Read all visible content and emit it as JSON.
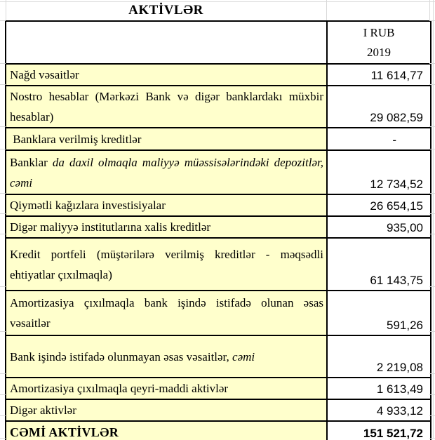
{
  "title": "AKTİVLƏR",
  "header": {
    "period_line1": "I RUB",
    "period_line2": "2019"
  },
  "colors": {
    "label_bg": "#FFFFCC",
    "border": "#000000",
    "gridline": "#D9D9D9",
    "text": "#000000"
  },
  "rows": [
    {
      "label": [
        {
          "text": "Nağd vəsaitlər",
          "italic": false
        }
      ],
      "value": "11 614,77",
      "total": false
    },
    {
      "label": [
        {
          "text": "Nostro hesablar (Mərkəzi Bank və digər banklardakı müxbir hesablar)",
          "italic": false
        }
      ],
      "value": "29 082,59",
      "total": false
    },
    {
      "label": [
        {
          "text": " Banklara verilmiş kreditlər",
          "italic": false
        }
      ],
      "value": "-",
      "total": false
    },
    {
      "label": [
        {
          "text": "Banklar ",
          "italic": false
        },
        {
          "text": "da daxil olmaqla maliyyə müəssisələrindəki depozitlər, cəmi",
          "italic": true
        }
      ],
      "value": "12 734,52",
      "total": false
    },
    {
      "label": [
        {
          "text": "Qiymətli kağızlara investisiyalar",
          "italic": false
        }
      ],
      "value": "26 654,15",
      "total": false
    },
    {
      "label": [
        {
          "text": "Digər maliyyə institutlarına xalis kreditlər",
          "italic": false
        }
      ],
      "value": "935,00",
      "total": false
    },
    {
      "label": [
        {
          "text": "Kredit portfeli (müştərilərə verilmiş kreditlər - məqsədli ehtiyatlar çıxılmaqla)",
          "italic": false
        }
      ],
      "value": "61 143,75",
      "total": false
    },
    {
      "label": [
        {
          "text": "Amortizasiya çıxılmaqla bank işində istifadə olunan əsas vəsaitlər",
          "italic": false
        }
      ],
      "value": "591,26",
      "total": false
    },
    {
      "label": [
        {
          "text": "Bank işində istifadə olunmayan əsas vəsaitlər, ",
          "italic": false
        },
        {
          "text": "cəmi",
          "italic": true
        }
      ],
      "value": "2 219,08",
      "total": false
    },
    {
      "label": [
        {
          "text": "Amortizasiya çıxılmaqla qeyri-maddi aktivlər",
          "italic": false
        }
      ],
      "value": "1 613,49",
      "total": false
    },
    {
      "label": [
        {
          "text": "Digər aktivlər",
          "italic": false
        }
      ],
      "value": "4 933,12",
      "total": false
    },
    {
      "label": [
        {
          "text": "CƏMİ AKTİVLƏR",
          "italic": false
        }
      ],
      "value": "151 521,72",
      "total": true
    }
  ]
}
